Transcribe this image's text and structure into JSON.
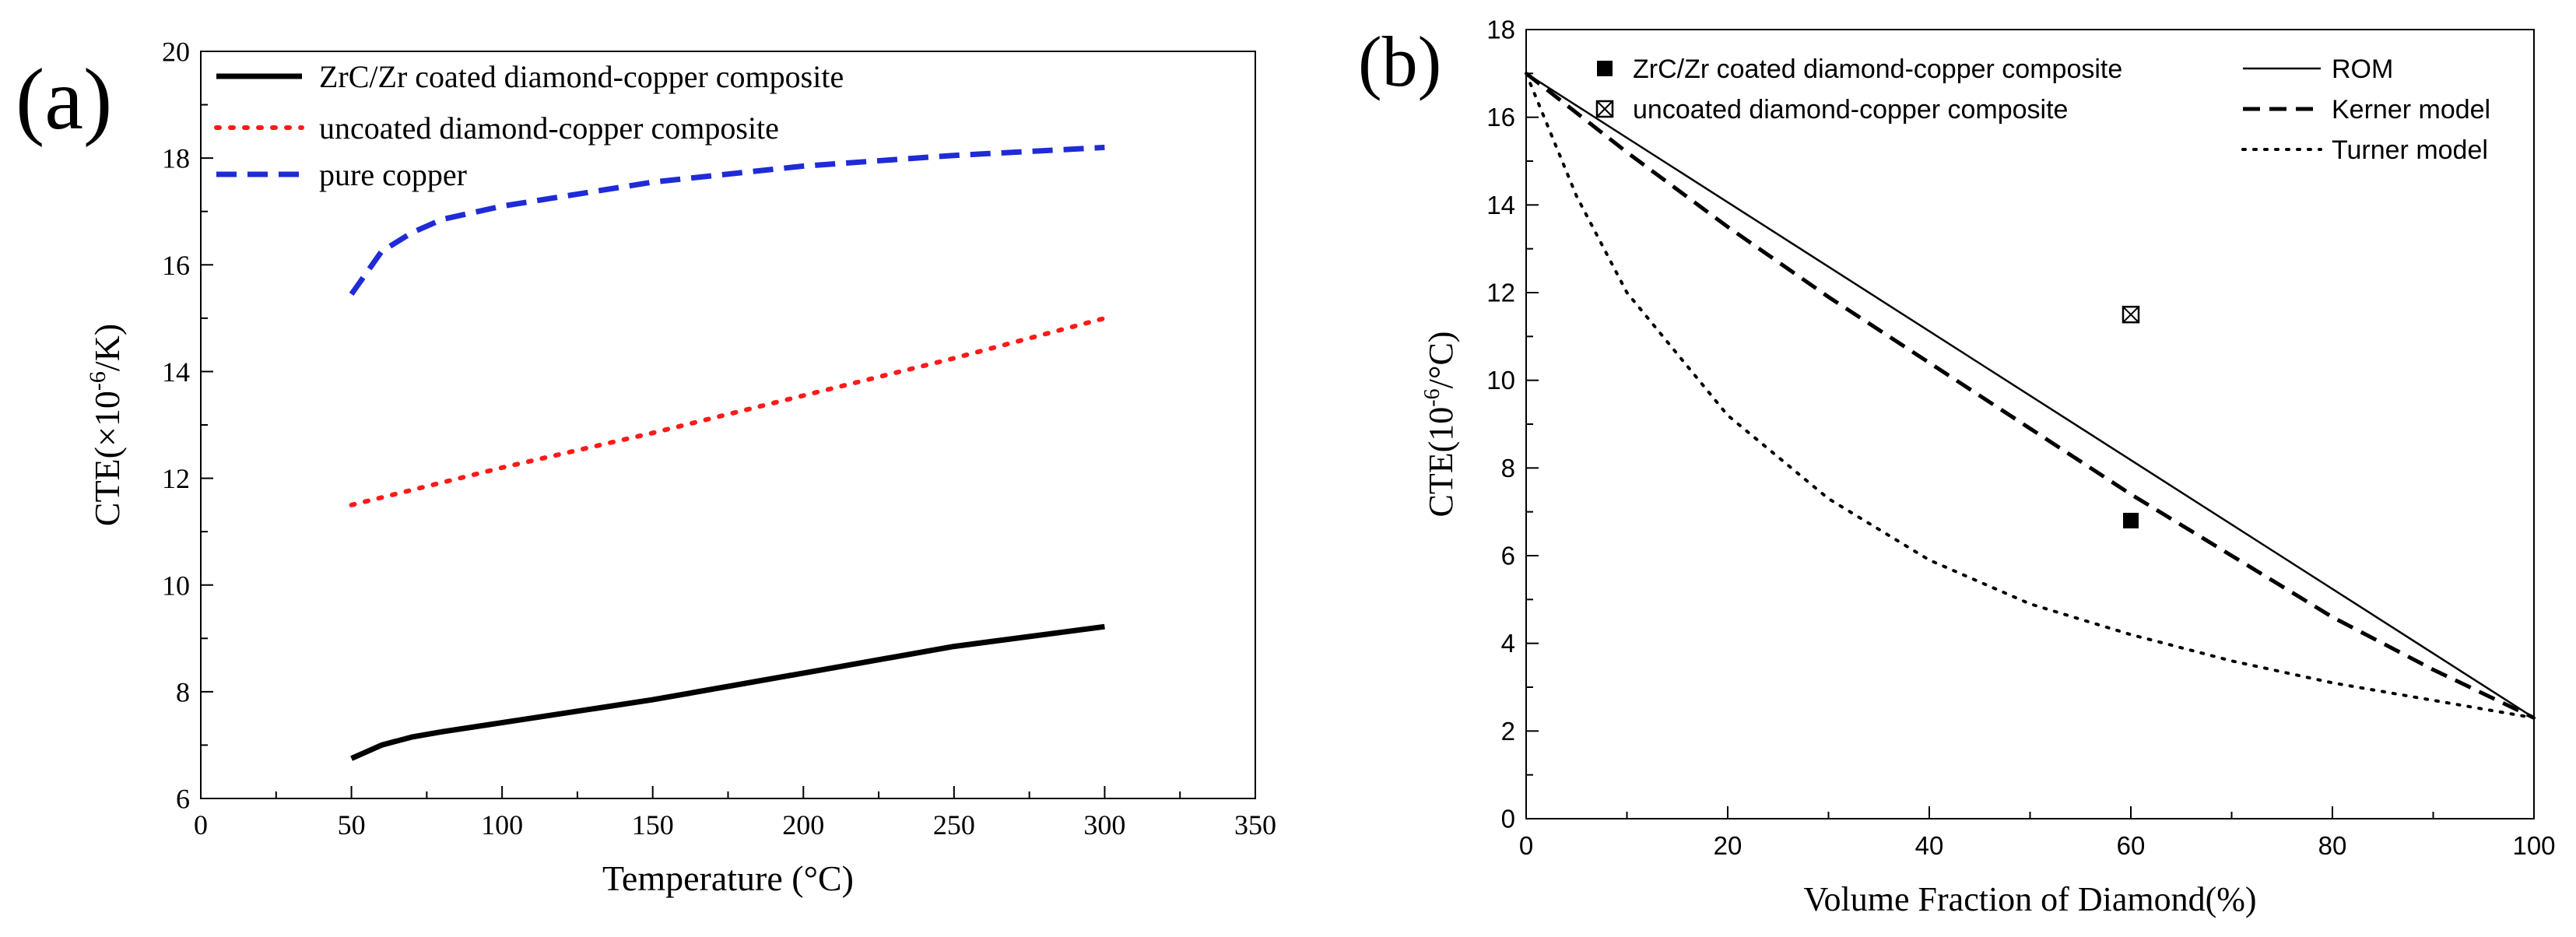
{
  "colors": {
    "black": "#000000",
    "red": "#ff1a1a",
    "blue": "#1f2bd6"
  },
  "panel_a": {
    "label": "(a)"
  },
  "panel_b": {
    "label": "(b)"
  },
  "chart_data": [
    {
      "id": "a",
      "type": "line",
      "xlabel": "Temperature (°C)",
      "ylabel_parts": [
        "CTE(×10",
        "-6",
        "/K)"
      ],
      "xlim": [
        0,
        350
      ],
      "ylim": [
        6,
        20
      ],
      "xticks": [
        0,
        50,
        100,
        150,
        200,
        250,
        300,
        350
      ],
      "yticks": [
        6,
        8,
        10,
        12,
        14,
        16,
        18,
        20
      ],
      "grid": false,
      "legend": "top-left",
      "series": [
        {
          "name": "ZrC/Zr coated diamond-copper composite",
          "style": "solid",
          "color": "#000000",
          "x": [
            50,
            60,
            70,
            80,
            100,
            150,
            200,
            250,
            300
          ],
          "y": [
            6.75,
            7.0,
            7.15,
            7.25,
            7.42,
            7.85,
            8.35,
            8.85,
            9.22
          ]
        },
        {
          "name": "uncoated diamond-copper composite",
          "style": "dotted",
          "color": "#ff1a1a",
          "x": [
            50,
            100,
            150,
            200,
            250,
            300
          ],
          "y": [
            11.5,
            12.2,
            12.85,
            13.55,
            14.25,
            15.0
          ]
        },
        {
          "name": "pure copper",
          "style": "dashed",
          "color": "#1f2bd6",
          "x": [
            50,
            60,
            70,
            80,
            100,
            150,
            200,
            250,
            300
          ],
          "y": [
            15.45,
            16.25,
            16.6,
            16.85,
            17.1,
            17.55,
            17.85,
            18.05,
            18.2
          ]
        }
      ]
    },
    {
      "id": "b",
      "type": "line",
      "xlabel": "Volume Fraction of Diamond(%)",
      "ylabel_parts": [
        "CTE(10",
        "-6",
        "/°C)"
      ],
      "xlim": [
        0,
        100
      ],
      "ylim": [
        0,
        18
      ],
      "xticks": [
        0,
        20,
        40,
        60,
        80,
        100
      ],
      "yticks": [
        0,
        2,
        4,
        6,
        8,
        10,
        12,
        14,
        16,
        18
      ],
      "grid": false,
      "legend": "top",
      "series": [
        {
          "name": "ROM",
          "style": "solid",
          "color": "#000000",
          "x": [
            0,
            100
          ],
          "y": [
            17.0,
            2.3
          ]
        },
        {
          "name": "Kerner model",
          "style": "dashed",
          "color": "#000000",
          "x": [
            0,
            10,
            20,
            30,
            40,
            50,
            60,
            70,
            80,
            90,
            100
          ],
          "y": [
            17.0,
            15.2,
            13.5,
            11.9,
            10.4,
            8.9,
            7.4,
            6.0,
            4.6,
            3.4,
            2.3
          ]
        },
        {
          "name": "Turner model",
          "style": "dotted",
          "color": "#000000",
          "x": [
            0,
            5,
            10,
            20,
            30,
            40,
            50,
            60,
            70,
            80,
            90,
            100
          ],
          "y": [
            17.0,
            14.2,
            12.0,
            9.2,
            7.3,
            5.9,
            4.9,
            4.2,
            3.6,
            3.1,
            2.7,
            2.3
          ]
        }
      ],
      "points": [
        {
          "name": "ZrC/Zr coated diamond-copper composite",
          "marker": "filled-square",
          "x": 60,
          "y": 6.8
        },
        {
          "name": "uncoated diamond-copper composite",
          "marker": "crossed-square",
          "x": 60,
          "y": 11.5
        }
      ],
      "legend_point_entries": [
        "ZrC/Zr coated diamond-copper composite",
        "uncoated diamond-copper composite"
      ],
      "legend_line_entries": [
        "ROM",
        "Kerner model",
        "Turner model"
      ]
    }
  ]
}
